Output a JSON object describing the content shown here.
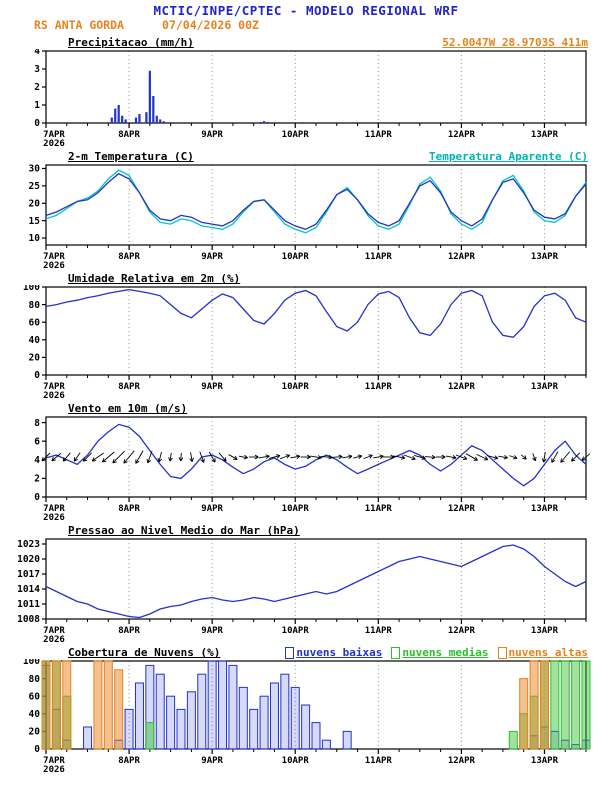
{
  "header": {
    "line1": "MCTIC/INPE/CPTEC - MODELO REGIONAL WRF",
    "station": "RS ANTA GORDA",
    "run": "07/04/2026 00Z",
    "coords": "52.0047W 28.9703S 411m"
  },
  "colors": {
    "header_blue": "#2222cc",
    "orange": "#e8821e",
    "line_blue": "#2233cc",
    "cyan": "#00b4b4",
    "green": "#2ebf2e",
    "grid": "#999999"
  },
  "x_axis": {
    "hours_total": 156,
    "tick_interval_hours": 24,
    "minor_tick_hours": 6,
    "ticks": [
      "7APR",
      "8APR",
      "9APR",
      "10APR",
      "11APR",
      "12APR",
      "13APR"
    ],
    "year": "2026"
  },
  "chart_data": [
    {
      "id": "precip",
      "type": "bar",
      "title": "Precipitacao (mm/h)",
      "ylim": [
        0,
        4
      ],
      "yticks": [
        0,
        1,
        2,
        3,
        4
      ],
      "series": [
        {
          "name": "precipitacao",
          "color": "#2233cc",
          "points": [
            [
              19,
              0.3
            ],
            [
              20,
              0.8
            ],
            [
              21,
              1.0
            ],
            [
              22,
              0.4
            ],
            [
              23,
              0.2
            ],
            [
              26,
              0.3
            ],
            [
              27,
              0.5
            ],
            [
              29,
              0.6
            ],
            [
              30,
              2.9
            ],
            [
              31,
              1.5
            ],
            [
              32,
              0.4
            ],
            [
              33,
              0.2
            ],
            [
              34,
              0.1
            ],
            [
              62,
              0.06
            ],
            [
              63,
              0.1
            ],
            [
              64,
              0.06
            ],
            [
              74,
              0.05
            ]
          ]
        }
      ]
    },
    {
      "id": "temp2m",
      "type": "line",
      "title": "2-m Temperatura (C)",
      "right_label": "Temperatura Aparente (C)",
      "ylim": [
        8,
        31
      ],
      "yticks": [
        10,
        15,
        20,
        25,
        30
      ],
      "step_hours": 3,
      "series": [
        {
          "name": "temperatura-2m",
          "color": "#2233cc",
          "values": [
            16.5,
            17.5,
            19,
            20.5,
            21,
            23,
            26,
            28.5,
            27,
            23,
            18,
            15.5,
            15,
            16.5,
            16,
            14.5,
            14,
            13.5,
            15,
            18,
            20.5,
            21,
            18,
            15,
            13.5,
            12.5,
            14,
            18,
            22.5,
            24,
            21,
            17,
            14.5,
            13.5,
            15,
            20,
            25,
            26.5,
            23,
            17.5,
            15,
            13.5,
            15.5,
            21,
            26,
            27,
            23,
            18,
            16,
            15.5,
            17,
            22,
            25.5
          ]
        },
        {
          "name": "temperatura-aparente",
          "color": "#00c8c0",
          "values": [
            15.5,
            16.5,
            18.5,
            20.5,
            21.5,
            23.5,
            27,
            29.5,
            28,
            23,
            17.5,
            14.5,
            14,
            15.5,
            15,
            13.5,
            13,
            12.5,
            14,
            17.5,
            20.5,
            21,
            17.5,
            14,
            12.5,
            11.5,
            13,
            17.5,
            22.5,
            24.5,
            21,
            16.5,
            13.5,
            12.5,
            14,
            19.5,
            25.5,
            27.5,
            23.5,
            17,
            14,
            12.5,
            14.5,
            21,
            26.5,
            28,
            23.5,
            17.5,
            15,
            14.5,
            16.5,
            22,
            26
          ]
        }
      ]
    },
    {
      "id": "rh2m",
      "type": "line",
      "title": "Umidade Relativa em 2m (%)",
      "ylim": [
        0,
        100
      ],
      "yticks": [
        0,
        20,
        40,
        60,
        80,
        100
      ],
      "step_hours": 3,
      "series": [
        {
          "name": "umidade-relativa",
          "color": "#2233cc",
          "values": [
            78,
            80,
            83,
            85,
            88,
            90,
            93,
            95,
            97,
            95,
            93,
            90,
            80,
            70,
            65,
            75,
            85,
            92,
            88,
            75,
            62,
            58,
            70,
            85,
            93,
            96,
            90,
            72,
            55,
            50,
            60,
            80,
            92,
            95,
            88,
            65,
            48,
            45,
            58,
            80,
            93,
            96,
            90,
            60,
            45,
            43,
            55,
            78,
            90,
            93,
            85,
            65,
            60
          ]
        }
      ]
    },
    {
      "id": "wind10m",
      "type": "line",
      "title": "Vento em 10m (m/s)",
      "ylim": [
        0,
        8.6
      ],
      "yticks": [
        0,
        2,
        4,
        6,
        8
      ],
      "step_hours": 3,
      "series": [
        {
          "name": "velocidade-vento",
          "color": "#2233cc",
          "values": [
            4.2,
            4.5,
            4.0,
            3.5,
            4.5,
            6.0,
            7.0,
            7.8,
            7.5,
            6.5,
            5.0,
            3.5,
            2.2,
            2.0,
            3.0,
            4.3,
            4.5,
            4.0,
            3.2,
            2.5,
            3.0,
            3.8,
            4.2,
            3.5,
            3.0,
            3.3,
            4.0,
            4.5,
            4.0,
            3.2,
            2.5,
            3.0,
            3.5,
            4.0,
            4.5,
            5.0,
            4.5,
            3.5,
            2.8,
            3.5,
            4.5,
            5.5,
            5.0,
            4.0,
            3.0,
            2.0,
            1.2,
            2.0,
            3.5,
            5.0,
            6.0,
            4.5,
            3.5
          ]
        }
      ],
      "arrows": {
        "name": "direcao-vento",
        "color": "#000000",
        "y": 4.3,
        "dirs_deg": [
          225,
          230,
          220,
          215,
          225,
          235,
          230,
          225,
          220,
          210,
          200,
          195,
          190,
          185,
          170,
          160,
          150,
          140,
          120,
          100,
          90,
          80,
          75,
          70,
          80,
          90,
          100,
          95,
          85,
          80,
          75,
          70,
          80,
          90,
          100,
          110,
          105,
          95,
          90,
          100,
          110,
          120,
          115,
          105,
          100,
          110,
          130,
          160,
          190,
          210,
          220,
          225,
          230
        ]
      }
    },
    {
      "id": "slp",
      "type": "line",
      "title": "Pressao ao Nivel Medio do Mar (hPa)",
      "ylim": [
        1008,
        1024
      ],
      "yticks": [
        1008,
        1011,
        1014,
        1017,
        1020,
        1023
      ],
      "step_hours": 3,
      "series": [
        {
          "name": "pressao-nivel-mar",
          "color": "#2233cc",
          "values": [
            1014.5,
            1013.5,
            1012.5,
            1011.5,
            1011,
            1010,
            1009.5,
            1009,
            1008.5,
            1008.3,
            1009,
            1010,
            1010.5,
            1010.8,
            1011.5,
            1012,
            1012.3,
            1011.8,
            1011.5,
            1011.8,
            1012.3,
            1012,
            1011.5,
            1012,
            1012.5,
            1013,
            1013.5,
            1013,
            1013.5,
            1014.5,
            1015.5,
            1016.5,
            1017.5,
            1018.5,
            1019.5,
            1020,
            1020.5,
            1020,
            1019.5,
            1019,
            1018.5,
            1019.5,
            1020.5,
            1021.5,
            1022.5,
            1022.8,
            1022,
            1020.5,
            1018.5,
            1017,
            1015.5,
            1014.5,
            1015.5
          ]
        }
      ]
    },
    {
      "id": "clouds",
      "type": "bars",
      "title": "Cobertura de Nuvens (%)",
      "ylim": [
        0,
        100
      ],
      "yticks": [
        0,
        20,
        40,
        60,
        80,
        100
      ],
      "step_hours": 3,
      "legend": [
        {
          "label": "nuvens baixas",
          "color": "#2233cc"
        },
        {
          "label": "nuvens medias",
          "color": "#2ebf2e"
        },
        {
          "label": "nuvens altas",
          "color": "#e8821e"
        }
      ],
      "series": [
        {
          "name": "nuvens-baixas",
          "color": "#2233cc",
          "values": [
            95,
            45,
            10,
            0,
            25,
            0,
            0,
            10,
            45,
            75,
            95,
            85,
            60,
            45,
            65,
            85,
            100,
            100,
            95,
            70,
            45,
            60,
            75,
            85,
            70,
            50,
            30,
            10,
            0,
            20,
            0,
            0,
            0,
            0,
            0,
            0,
            0,
            0,
            0,
            0,
            0,
            0,
            0,
            0,
            0,
            0,
            0,
            15,
            25,
            20,
            10,
            5,
            10
          ]
        },
        {
          "name": "nuvens-medias",
          "color": "#2ebf2e",
          "values": [
            100,
            100,
            60,
            0,
            0,
            0,
            0,
            0,
            0,
            0,
            30,
            0,
            0,
            0,
            0,
            0,
            0,
            0,
            0,
            0,
            0,
            0,
            0,
            0,
            0,
            0,
            0,
            0,
            0,
            0,
            0,
            0,
            0,
            0,
            0,
            0,
            0,
            0,
            0,
            0,
            0,
            0,
            0,
            0,
            0,
            20,
            40,
            60,
            100,
            100,
            100,
            100,
            100
          ]
        },
        {
          "name": "nuvens-altas",
          "color": "#e8821e",
          "values": [
            100,
            100,
            100,
            0,
            0,
            100,
            100,
            90,
            0,
            0,
            0,
            0,
            0,
            0,
            0,
            0,
            0,
            0,
            0,
            0,
            0,
            0,
            0,
            0,
            0,
            0,
            0,
            0,
            0,
            0,
            0,
            0,
            0,
            0,
            0,
            0,
            0,
            0,
            0,
            0,
            0,
            0,
            0,
            0,
            0,
            0,
            80,
            100,
            100,
            0,
            0,
            0,
            0
          ]
        }
      ]
    }
  ]
}
